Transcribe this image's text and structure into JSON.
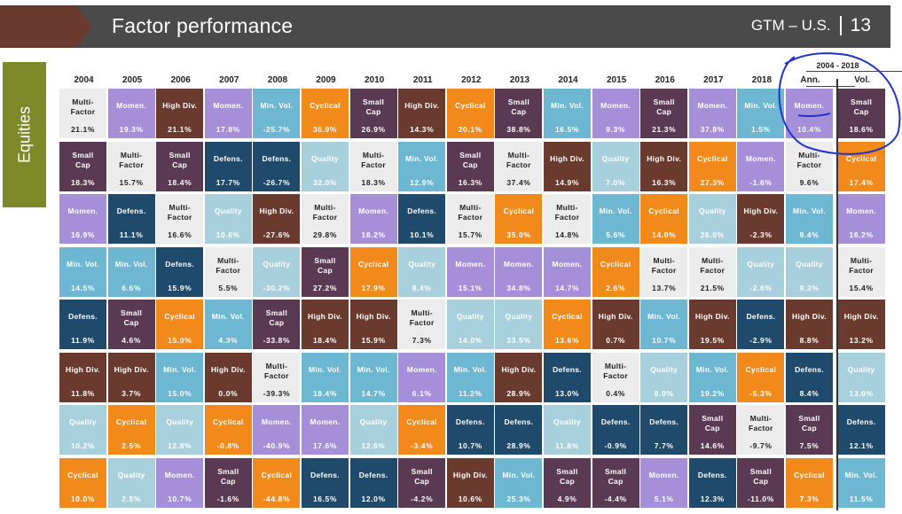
{
  "header": {
    "title": "Factor performance",
    "region": "GTM – U.S.",
    "page_number": "13"
  },
  "side_tab": "Equities",
  "colors": {
    "banner": "#4a4a4a",
    "banner_arrow": "#6b3a2e",
    "side_tab": "#7c8a2a",
    "annotation_pen": "#2233cc",
    "factors": {
      "Multi-Factor": "#ececec",
      "Momen.": "#a48fd8",
      "High Div.": "#6b3a2e",
      "Min. Vol.": "#6db7d3",
      "Cyclical": "#f28a1b",
      "Small Cap": "#5a3a52",
      "Defens.": "#1f4a6b",
      "Quality": "#a8d0dc"
    }
  },
  "chart_data": {
    "type": "table",
    "title": "Factor performance",
    "columns": [
      "2004",
      "2005",
      "2006",
      "2007",
      "2008",
      "2009",
      "2010",
      "2011",
      "2012",
      "2013",
      "2014",
      "2015",
      "2016",
      "2017",
      "2018",
      "Ann.",
      "Vol."
    ],
    "range_header": "2004 - 2018",
    "range_subheaders": [
      "Ann.",
      "Vol."
    ],
    "rows": [
      [
        [
          "Multi-Factor",
          "21.1%"
        ],
        [
          "Momen.",
          "19.3%"
        ],
        [
          "High Div.",
          "21.1%"
        ],
        [
          "Momen.",
          "17.8%"
        ],
        [
          "Min. Vol.",
          "-25.7%"
        ],
        [
          "Cyclical",
          "36.9%"
        ],
        [
          "Small Cap",
          "26.9%"
        ],
        [
          "High Div.",
          "14.3%"
        ],
        [
          "Cyclical",
          "20.1%"
        ],
        [
          "Small Cap",
          "38.8%"
        ],
        [
          "Min. Vol.",
          "16.5%"
        ],
        [
          "Momen.",
          "9.3%"
        ],
        [
          "Small Cap",
          "21.3%"
        ],
        [
          "Momen.",
          "37.8%"
        ],
        [
          "Min. Vol.",
          "1.5%"
        ],
        [
          "Momen.",
          "10.4%"
        ],
        [
          "Small Cap",
          "18.6%"
        ]
      ],
      [
        [
          "Small Cap",
          "18.3%"
        ],
        [
          "Multi-Factor",
          "15.7%"
        ],
        [
          "Small Cap",
          "18.4%"
        ],
        [
          "Defens.",
          "17.7%"
        ],
        [
          "Defens.",
          "-26.7%"
        ],
        [
          "Quality",
          "32.0%"
        ],
        [
          "Multi-Factor",
          "18.3%"
        ],
        [
          "Min. Vol.",
          "12.9%"
        ],
        [
          "Small Cap",
          "16.3%"
        ],
        [
          "Multi-Factor",
          "37.4%"
        ],
        [
          "High Div.",
          "14.9%"
        ],
        [
          "Quality",
          "7.0%"
        ],
        [
          "High Div.",
          "16.3%"
        ],
        [
          "Cyclical",
          "27.3%"
        ],
        [
          "Momen.",
          "-1.6%"
        ],
        [
          "Multi-Factor",
          "9.6%"
        ],
        [
          "Cyclical",
          "17.4%"
        ]
      ],
      [
        [
          "Momen.",
          "16.9%"
        ],
        [
          "Defens.",
          "11.1%"
        ],
        [
          "Multi-Factor",
          "16.6%"
        ],
        [
          "Quality",
          "10.6%"
        ],
        [
          "High Div.",
          "-27.6%"
        ],
        [
          "Multi-Factor",
          "29.8%"
        ],
        [
          "Momen.",
          "18.2%"
        ],
        [
          "Defens.",
          "10.1%"
        ],
        [
          "Multi-Factor",
          "15.7%"
        ],
        [
          "Cyclical",
          "35.0%"
        ],
        [
          "Multi-Factor",
          "14.8%"
        ],
        [
          "Min. Vol.",
          "5.6%"
        ],
        [
          "Cyclical",
          "14.0%"
        ],
        [
          "Quality",
          "26.0%"
        ],
        [
          "High Div.",
          "-2.3%"
        ],
        [
          "Min. Vol.",
          "9.4%"
        ],
        [
          "Momen.",
          "16.2%"
        ]
      ],
      [
        [
          "Min. Vol.",
          "14.5%"
        ],
        [
          "Min. Vol.",
          "6.6%"
        ],
        [
          "Defens.",
          "15.9%"
        ],
        [
          "Multi-Factor",
          "5.5%"
        ],
        [
          "Quality",
          "-30.2%"
        ],
        [
          "Small Cap",
          "27.2%"
        ],
        [
          "Cyclical",
          "17.9%"
        ],
        [
          "Quality",
          "8.4%"
        ],
        [
          "Momen.",
          "15.1%"
        ],
        [
          "Momen.",
          "34.8%"
        ],
        [
          "Momen.",
          "14.7%"
        ],
        [
          "Cyclical",
          "2.6%"
        ],
        [
          "Multi-Factor",
          "13.7%"
        ],
        [
          "Multi-Factor",
          "21.5%"
        ],
        [
          "Quality",
          "-2.6%"
        ],
        [
          "Quality",
          "9.3%"
        ],
        [
          "Multi-Factor",
          "15.4%"
        ]
      ],
      [
        [
          "Defens.",
          "11.9%"
        ],
        [
          "Small Cap",
          "4.6%"
        ],
        [
          "Cyclical",
          "15.0%"
        ],
        [
          "Min. Vol.",
          "4.3%"
        ],
        [
          "Small Cap",
          "-33.8%"
        ],
        [
          "High Div.",
          "18.4%"
        ],
        [
          "High Div.",
          "15.9%"
        ],
        [
          "Multi-Factor",
          "7.3%"
        ],
        [
          "Quality",
          "14.0%"
        ],
        [
          "Quality",
          "33.5%"
        ],
        [
          "Cyclical",
          "13.6%"
        ],
        [
          "High Div.",
          "0.7%"
        ],
        [
          "Min. Vol.",
          "10.7%"
        ],
        [
          "High Div.",
          "19.5%"
        ],
        [
          "Defens.",
          "-2.9%"
        ],
        [
          "High Div.",
          "8.8%"
        ],
        [
          "High Div.",
          "13.2%"
        ]
      ],
      [
        [
          "High Div.",
          "11.8%"
        ],
        [
          "High Div.",
          "3.7%"
        ],
        [
          "Min. Vol.",
          "15.0%"
        ],
        [
          "High Div.",
          "0.0%"
        ],
        [
          "Multi-Factor",
          "-39.3%"
        ],
        [
          "Min. Vol.",
          "18.4%"
        ],
        [
          "Min. Vol.",
          "14.7%"
        ],
        [
          "Momen.",
          "6.1%"
        ],
        [
          "Min. Vol.",
          "11.2%"
        ],
        [
          "High Div.",
          "28.9%"
        ],
        [
          "Defens.",
          "13.0%"
        ],
        [
          "Multi-Factor",
          "0.4%"
        ],
        [
          "Quality",
          "8.0%"
        ],
        [
          "Min. Vol.",
          "19.2%"
        ],
        [
          "Cyclical",
          "-5.3%"
        ],
        [
          "Defens.",
          "8.4%"
        ],
        [
          "Quality",
          "13.0%"
        ]
      ],
      [
        [
          "Quality",
          "10.2%"
        ],
        [
          "Cyclical",
          "2.5%"
        ],
        [
          "Quality",
          "12.8%"
        ],
        [
          "Cyclical",
          "-0.8%"
        ],
        [
          "Momen.",
          "-40.9%"
        ],
        [
          "Momen.",
          "17.6%"
        ],
        [
          "Quality",
          "12.6%"
        ],
        [
          "Cyclical",
          "-3.4%"
        ],
        [
          "Defens.",
          "10.7%"
        ],
        [
          "Defens.",
          "28.9%"
        ],
        [
          "Quality",
          "11.8%"
        ],
        [
          "Defens.",
          "-0.9%"
        ],
        [
          "Defens.",
          "7.7%"
        ],
        [
          "Small Cap",
          "14.6%"
        ],
        [
          "Multi-Factor",
          "-9.7%"
        ],
        [
          "Small Cap",
          "7.5%"
        ],
        [
          "Defens.",
          "12.1%"
        ]
      ],
      [
        [
          "Cyclical",
          "10.0%"
        ],
        [
          "Quality",
          "2.5%"
        ],
        [
          "Momen.",
          "10.7%"
        ],
        [
          "Small Cap",
          "-1.6%"
        ],
        [
          "Cyclical",
          "-44.8%"
        ],
        [
          "Defens.",
          "16.5%"
        ],
        [
          "Defens.",
          "12.0%"
        ],
        [
          "Small Cap",
          "-4.2%"
        ],
        [
          "High Div.",
          "10.6%"
        ],
        [
          "Min. Vol.",
          "25.3%"
        ],
        [
          "Small Cap",
          "4.9%"
        ],
        [
          "Small Cap",
          "-4.4%"
        ],
        [
          "Momen.",
          "5.1%"
        ],
        [
          "Defens.",
          "12.3%"
        ],
        [
          "Small Cap",
          "-11.0%"
        ],
        [
          "Cyclical",
          "7.3%"
        ],
        [
          "Min. Vol.",
          "11.5%"
        ]
      ]
    ]
  }
}
